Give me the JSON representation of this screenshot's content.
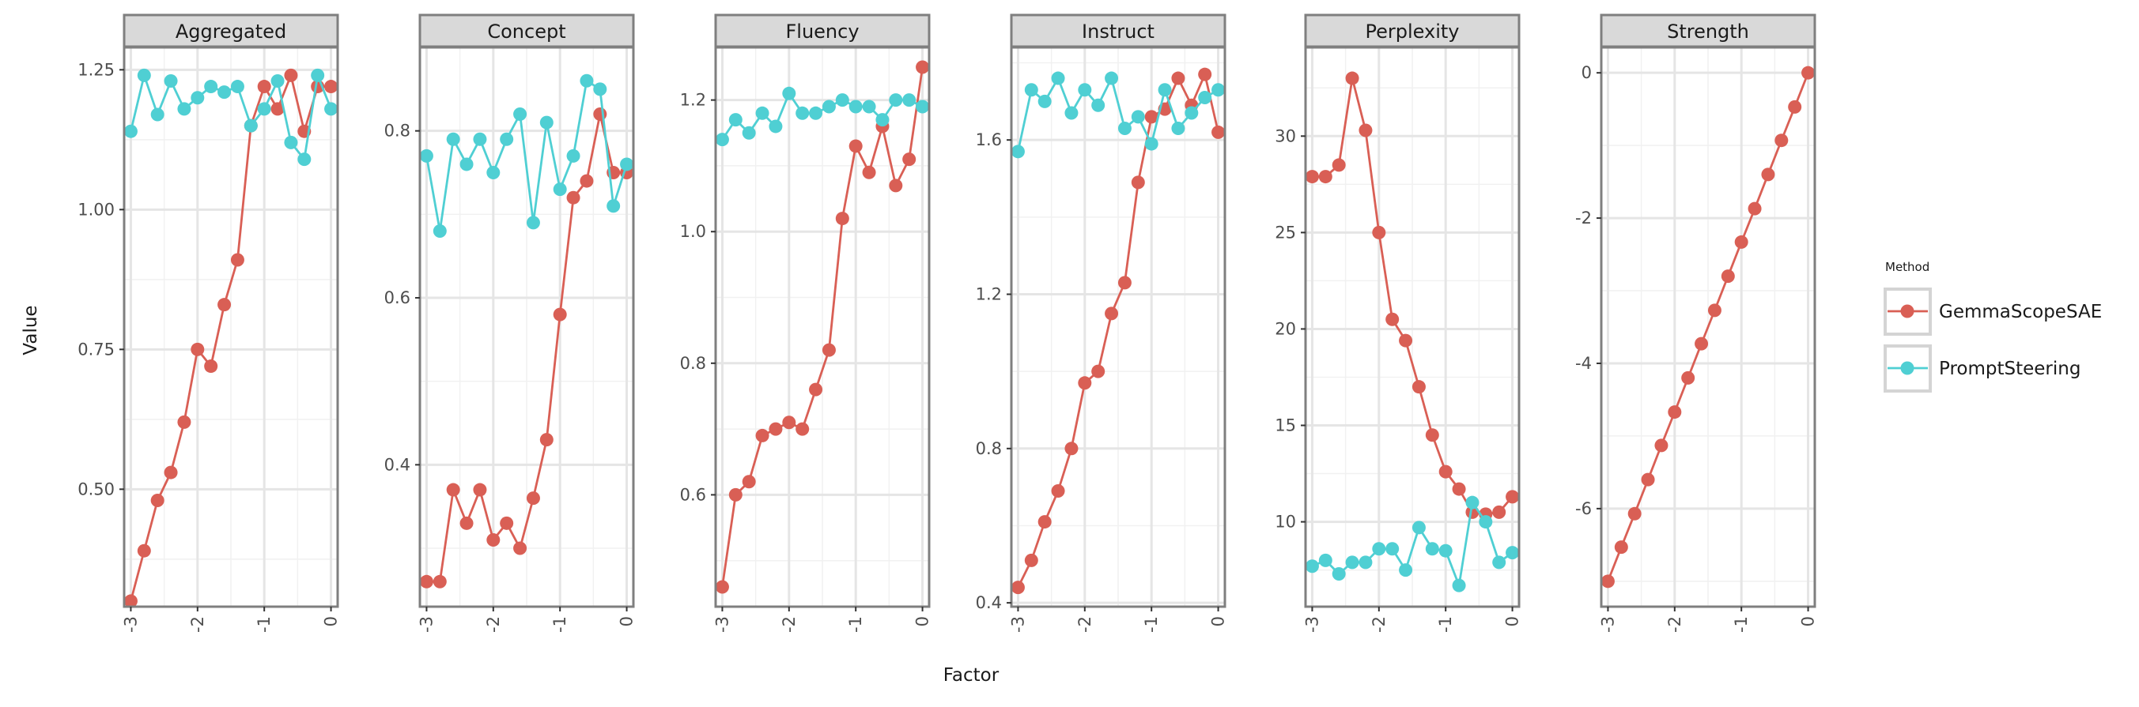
{
  "chart_data": {
    "type": "line",
    "xlabel": "Factor",
    "ylabel": "Value",
    "legend": {
      "title": "Method",
      "placement": "right"
    },
    "x": [
      -3,
      -2.8,
      -2.6,
      -2.4,
      -2.2,
      -2.0,
      -1.8,
      -1.6,
      -1.4,
      -1.2,
      -1.0,
      -0.8,
      -0.6,
      -0.4,
      -0.2,
      0.0
    ],
    "xlim": [
      -3.1,
      0.1
    ],
    "x_ticks": [
      -3,
      -2,
      -1,
      0
    ],
    "x_tick_labels": [
      "-3",
      "-2",
      "-1",
      "0"
    ],
    "series_styles": [
      {
        "name": "GemmaScopeSAE",
        "color": "#d95f55"
      },
      {
        "name": "PromptSteering",
        "color": "#4fcfd3"
      }
    ],
    "facets": [
      {
        "title": "Aggregated",
        "ylim": [
          0.29,
          1.29
        ],
        "y_ticks": [
          0.5,
          0.75,
          1.0,
          1.25
        ],
        "y_tick_labels": [
          "0.50",
          "0.75",
          "1.00",
          "1.25"
        ],
        "series": [
          {
            "name": "GemmaScopeSAE",
            "values": [
              0.3,
              0.39,
              0.48,
              0.53,
              0.62,
              0.75,
              0.72,
              0.83,
              0.91,
              1.15,
              1.22,
              1.18,
              1.24,
              1.14,
              1.22,
              1.22
            ]
          },
          {
            "name": "PromptSteering",
            "values": [
              1.14,
              1.24,
              1.17,
              1.23,
              1.18,
              1.2,
              1.22,
              1.21,
              1.22,
              1.15,
              1.18,
              1.23,
              1.12,
              1.09,
              1.24,
              1.18
            ]
          }
        ]
      },
      {
        "title": "Concept",
        "ylim": [
          0.23,
          0.9
        ],
        "y_ticks": [
          0.4,
          0.6,
          0.8
        ],
        "y_tick_labels": [
          "0.4",
          "0.6",
          "0.8"
        ],
        "series": [
          {
            "name": "GemmaScopeSAE",
            "values": [
              0.26,
              0.26,
              0.37,
              0.33,
              0.37,
              0.31,
              0.33,
              0.3,
              0.36,
              0.43,
              0.58,
              0.72,
              0.74,
              0.82,
              0.75,
              0.75
            ]
          },
          {
            "name": "PromptSteering",
            "values": [
              0.77,
              0.68,
              0.79,
              0.76,
              0.79,
              0.75,
              0.79,
              0.82,
              0.69,
              0.81,
              0.73,
              0.77,
              0.86,
              0.85,
              0.71,
              0.76
            ]
          }
        ]
      },
      {
        "title": "Fluency",
        "ylim": [
          0.43,
          1.28
        ],
        "y_ticks": [
          0.6,
          0.8,
          1.0,
          1.2
        ],
        "y_tick_labels": [
          "0.6",
          "0.8",
          "1.0",
          "1.2"
        ],
        "series": [
          {
            "name": "GemmaScopeSAE",
            "values": [
              0.46,
              0.6,
              0.62,
              0.69,
              0.7,
              0.71,
              0.7,
              0.76,
              0.82,
              1.02,
              1.13,
              1.09,
              1.16,
              1.07,
              1.11,
              1.25
            ]
          },
          {
            "name": "PromptSteering",
            "values": [
              1.14,
              1.17,
              1.15,
              1.18,
              1.16,
              1.21,
              1.18,
              1.18,
              1.19,
              1.2,
              1.19,
              1.19,
              1.17,
              1.2,
              1.2,
              1.19
            ]
          }
        ]
      },
      {
        "title": "Instruct",
        "ylim": [
          0.39,
          1.84
        ],
        "y_ticks": [
          0.4,
          0.8,
          1.2,
          1.6
        ],
        "y_tick_labels": [
          "0.4",
          "0.8",
          "1.2",
          "1.6"
        ],
        "series": [
          {
            "name": "GemmaScopeSAE",
            "values": [
              0.44,
              0.51,
              0.61,
              0.69,
              0.8,
              0.97,
              1.0,
              1.15,
              1.23,
              1.49,
              1.66,
              1.68,
              1.76,
              1.69,
              1.77,
              1.62
            ]
          },
          {
            "name": "PromptSteering",
            "values": [
              1.57,
              1.73,
              1.7,
              1.76,
              1.67,
              1.73,
              1.69,
              1.76,
              1.63,
              1.66,
              1.59,
              1.73,
              1.63,
              1.67,
              1.71,
              1.73
            ]
          }
        ]
      },
      {
        "title": "Perplexity",
        "ylim": [
          5.6,
          34.6
        ],
        "y_ticks": [
          10,
          15,
          20,
          25,
          30
        ],
        "y_tick_labels": [
          "10",
          "15",
          "20",
          "25",
          "30"
        ],
        "series": [
          {
            "name": "GemmaScopeSAE",
            "values": [
              27.9,
              27.9,
              28.5,
              33.0,
              30.3,
              25.0,
              20.5,
              19.4,
              17.0,
              14.5,
              12.6,
              11.7,
              10.5,
              10.4,
              10.5,
              11.3
            ]
          },
          {
            "name": "PromptSteering",
            "values": [
              7.7,
              8.0,
              7.3,
              7.9,
              7.9,
              8.6,
              8.6,
              7.5,
              9.7,
              8.6,
              8.5,
              6.7,
              11.0,
              10.0,
              7.9,
              8.4
            ]
          }
        ]
      },
      {
        "title": "Strength",
        "ylim": [
          -7.35,
          0.35
        ],
        "y_ticks": [
          -6,
          -4,
          -2,
          0
        ],
        "y_tick_labels": [
          "-6",
          "-4",
          "-2",
          "0"
        ],
        "series": [
          {
            "name": "GemmaScopeSAE",
            "values": [
              -7.0,
              -6.53,
              -6.07,
              -5.6,
              -5.13,
              -4.67,
              -4.2,
              -3.73,
              -3.27,
              -2.8,
              -2.33,
              -1.87,
              -1.4,
              -0.93,
              -0.47,
              0.0
            ]
          }
        ]
      }
    ]
  }
}
